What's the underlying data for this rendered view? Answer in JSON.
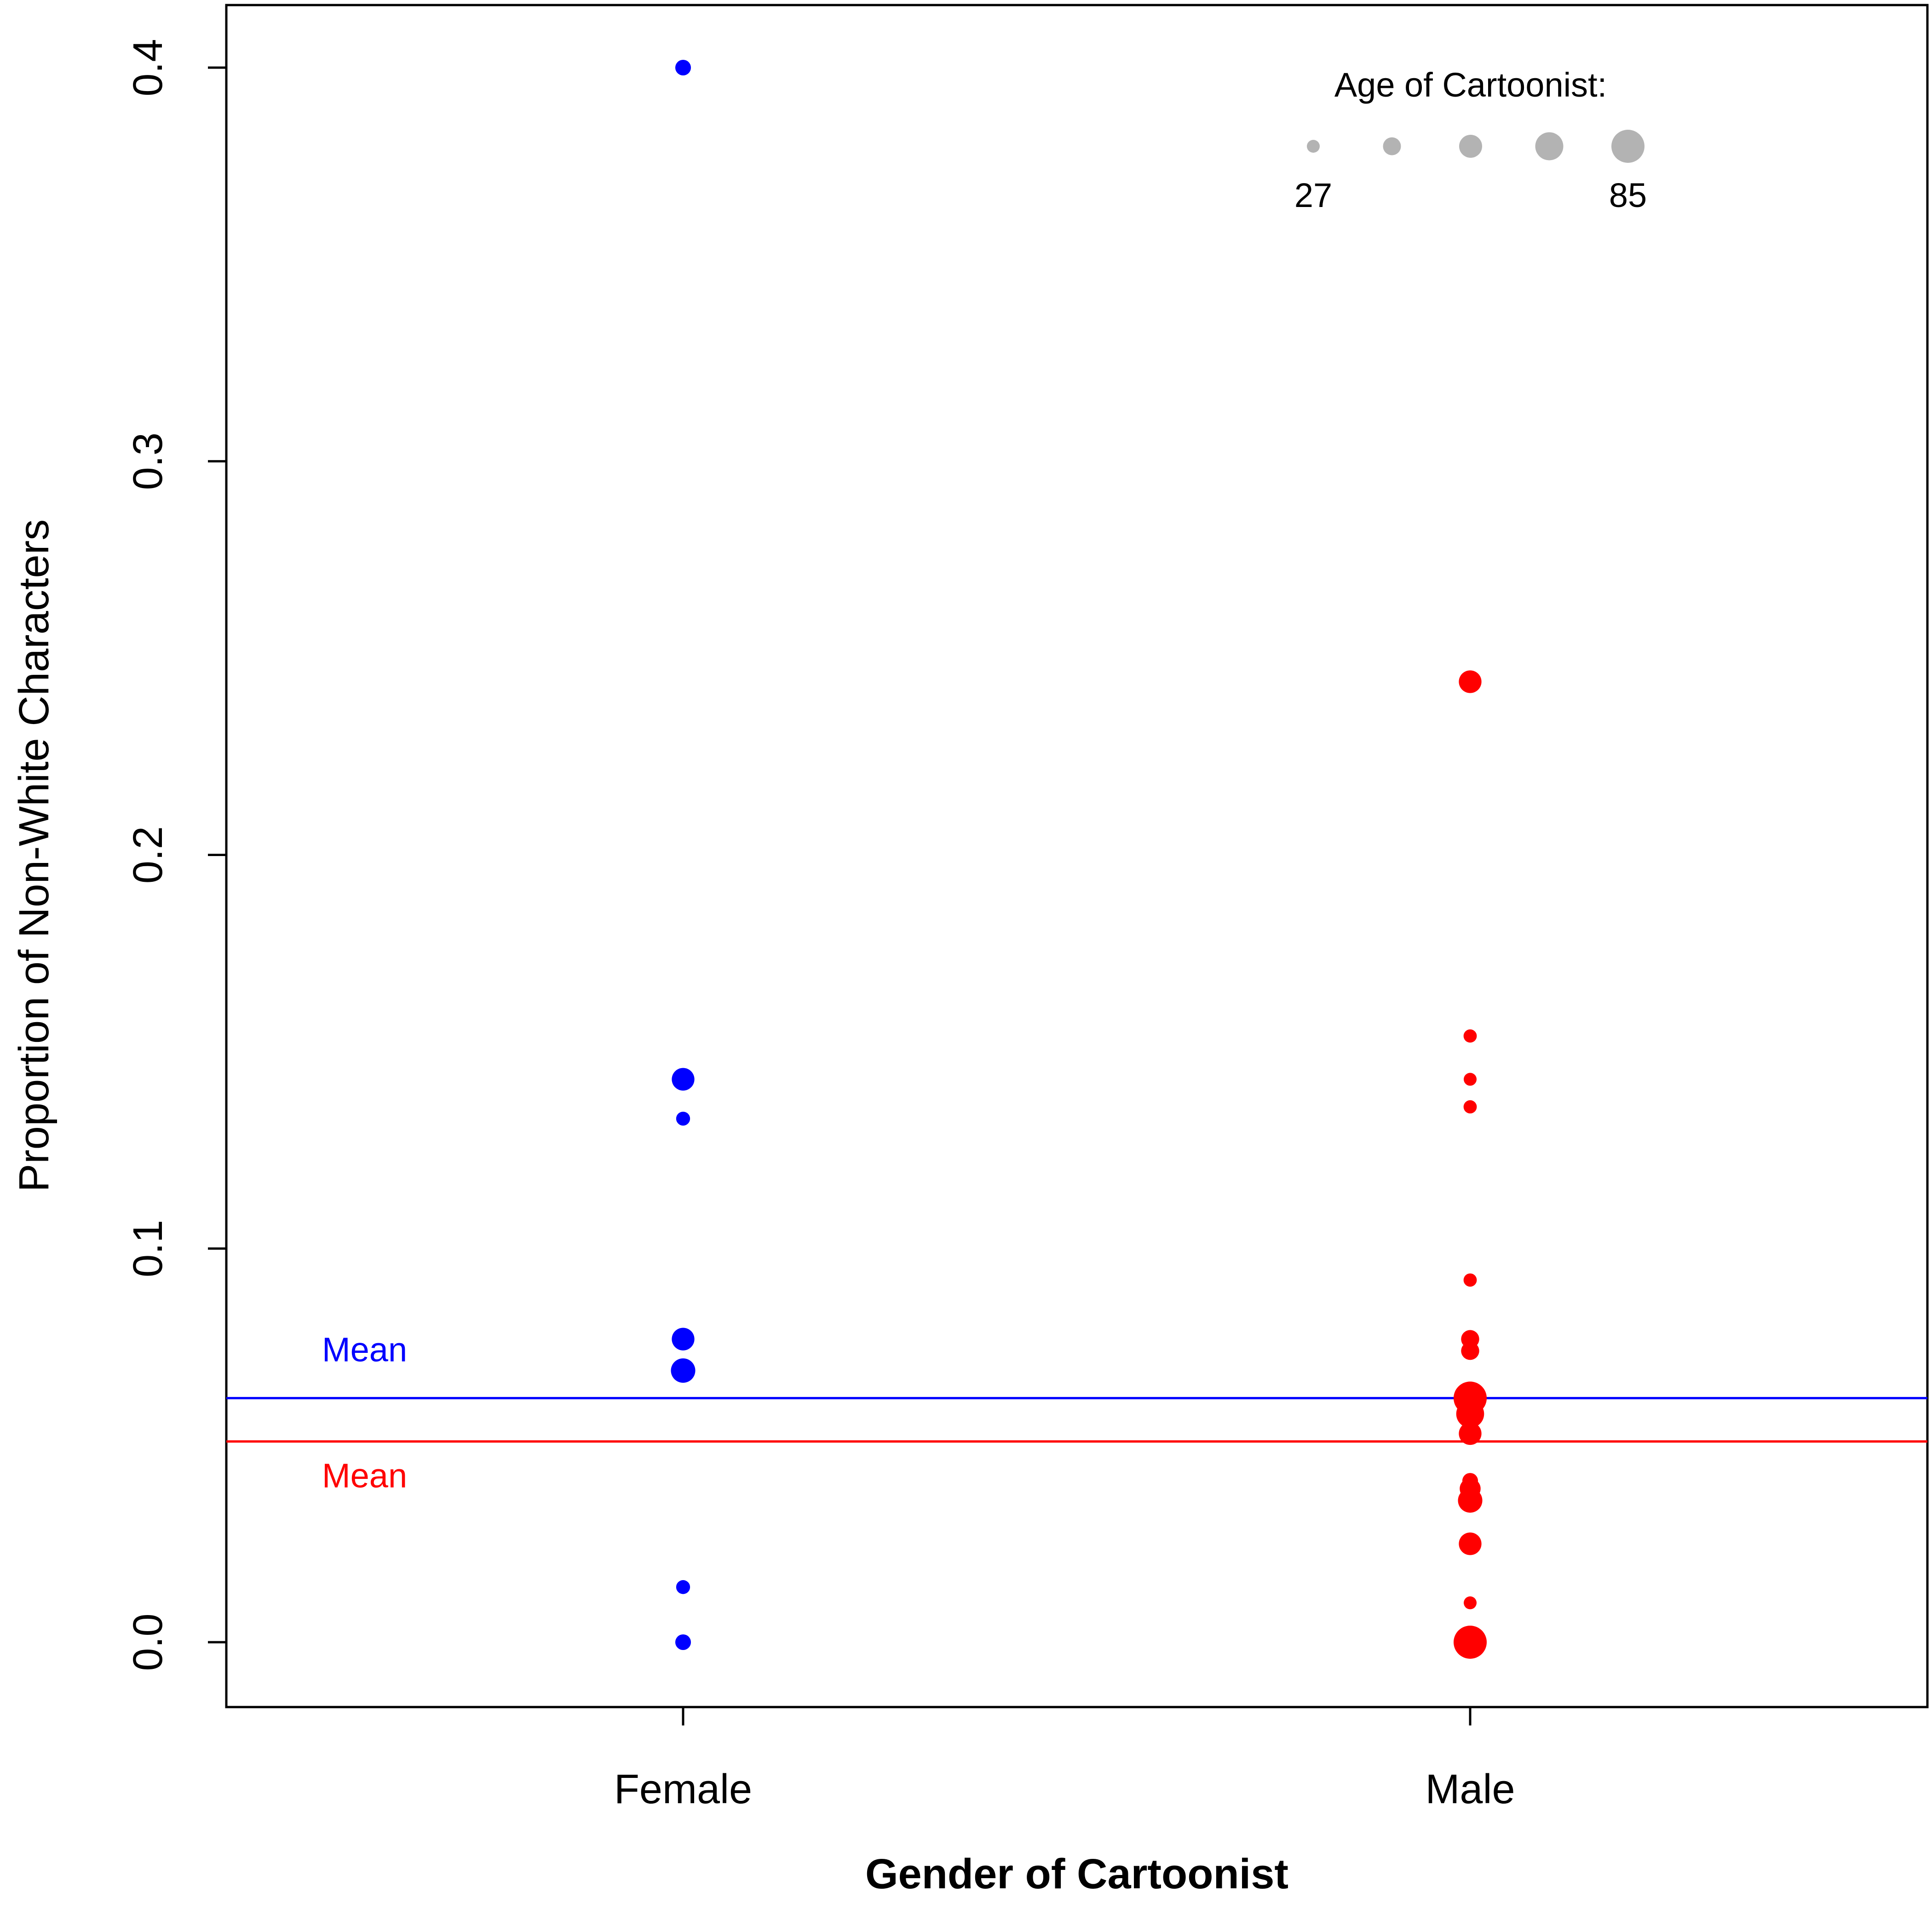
{
  "chart_data": {
    "type": "scatter",
    "xlabel": "Gender of Cartoonist",
    "ylabel": "Proportion of Non-White Characters",
    "categories": [
      "Female",
      "Male"
    ],
    "ylim": [
      -0.016,
      0.415
    ],
    "yticks": [
      "0.0",
      "0.1",
      "0.2",
      "0.3",
      "0.4"
    ],
    "grid": false,
    "series": [
      {
        "category": "Female",
        "color": "#0000ff",
        "points": [
          {
            "y": 0.4,
            "age": 35
          },
          {
            "y": 0.143,
            "age": 55
          },
          {
            "y": 0.133,
            "age": 30
          },
          {
            "y": 0.077,
            "age": 55
          },
          {
            "y": 0.069,
            "age": 60
          },
          {
            "y": 0.014,
            "age": 30
          },
          {
            "y": 0.0,
            "age": 35
          }
        ],
        "mean": 0.062,
        "mean_label": "Mean"
      },
      {
        "category": "Male",
        "color": "#ff0000",
        "points": [
          {
            "y": 0.244,
            "age": 55
          },
          {
            "y": 0.154,
            "age": 28
          },
          {
            "y": 0.143,
            "age": 27
          },
          {
            "y": 0.136,
            "age": 28
          },
          {
            "y": 0.092,
            "age": 28
          },
          {
            "y": 0.077,
            "age": 42
          },
          {
            "y": 0.074,
            "age": 42
          },
          {
            "y": 0.062,
            "age": 85
          },
          {
            "y": 0.058,
            "age": 70
          },
          {
            "y": 0.053,
            "age": 55
          },
          {
            "y": 0.041,
            "age": 35
          },
          {
            "y": 0.039,
            "age": 50
          },
          {
            "y": 0.036,
            "age": 60
          },
          {
            "y": 0.025,
            "age": 55
          },
          {
            "y": 0.01,
            "age": 27
          },
          {
            "y": 0.0,
            "age": 85
          }
        ],
        "mean": 0.051,
        "mean_label": "Mean"
      }
    ],
    "legend": {
      "title": "Age of Cartoonist:",
      "placement": "top-right",
      "color": "#b3b3b3",
      "min_label": "27",
      "max_label": "85",
      "min_age": 27,
      "max_age": 85,
      "steps": 5
    }
  }
}
